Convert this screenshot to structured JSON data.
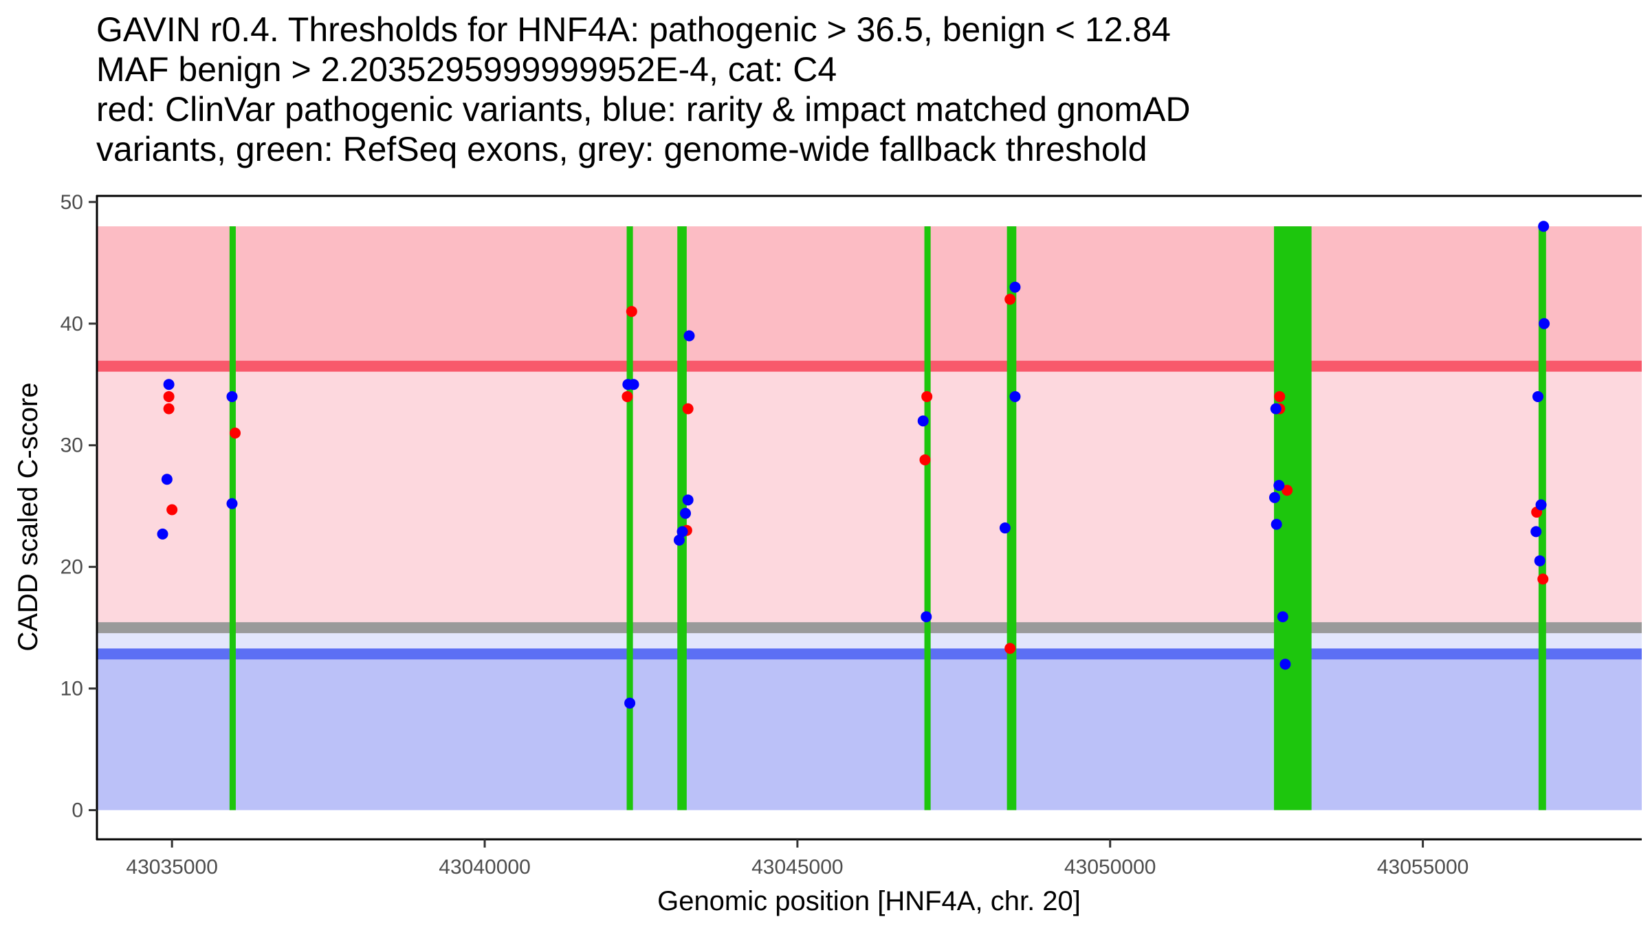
{
  "chart_data": {
    "type": "scatter",
    "title_lines": [
      "GAVIN r0.4. Thresholds for HNF4A: pathogenic > 36.5, benign < 12.84",
      "MAF benign > 2.2035295999999952E-4, cat: C4",
      "red: ClinVar pathogenic variants, blue: rarity & impact matched gnomAD",
      "variants, green: RefSeq exons, grey: genome-wide fallback threshold"
    ],
    "xlabel": "Genomic position [HNF4A, chr. 20]",
    "ylabel": "CADD scaled C-score",
    "xlim": [
      43033800,
      43058500
    ],
    "ylim": [
      -2.4,
      50.5
    ],
    "x_ticks": [
      43035000,
      43040000,
      43045000,
      43050000,
      43055000
    ],
    "x_tick_labels": [
      "43035000",
      "43040000",
      "43045000",
      "43050000",
      "43055000"
    ],
    "y_ticks": [
      0,
      10,
      20,
      30,
      40,
      50
    ],
    "y_tick_labels": [
      "0",
      "10",
      "20",
      "30",
      "40",
      "50"
    ],
    "colors": {
      "pathogenic_zone": "#fcbcc4",
      "middle_zone": "#fdd8de",
      "light_blue_zone": "#e3e6fc",
      "benign_zone": "#bbc1f8",
      "pathogenic_line": "#f8596b",
      "benign_line": "#5c6ff4",
      "fallback_line": "#9a9a9a",
      "exon": "#1dc60d",
      "clinvar": "#ff0000",
      "gnomad": "#0000ff"
    },
    "regions": {
      "x_start": 43033800,
      "x_end": 43058500,
      "y_top": 48,
      "pathogenic_threshold": 36.5,
      "fallback_threshold": 15.0,
      "benign_threshold": 12.84
    },
    "exons": [
      {
        "start": 43035920,
        "end": 43036020
      },
      {
        "start": 43042270,
        "end": 43042370
      },
      {
        "start": 43043080,
        "end": 43043230
      },
      {
        "start": 43047030,
        "end": 43047130
      },
      {
        "start": 43048350,
        "end": 43048500
      },
      {
        "start": 43052620,
        "end": 43053220
      },
      {
        "start": 43056850,
        "end": 43056970
      }
    ],
    "series": [
      {
        "name": "ClinVar pathogenic",
        "color": "#ff0000",
        "points": [
          {
            "x": 43034950,
            "y": 34.0
          },
          {
            "x": 43034950,
            "y": 33.0
          },
          {
            "x": 43035000,
            "y": 24.7
          },
          {
            "x": 43036010,
            "y": 31.0
          },
          {
            "x": 43042280,
            "y": 34.0
          },
          {
            "x": 43042350,
            "y": 41.0
          },
          {
            "x": 43043250,
            "y": 33.0
          },
          {
            "x": 43043230,
            "y": 23.0
          },
          {
            "x": 43047070,
            "y": 34.0
          },
          {
            "x": 43047040,
            "y": 28.8
          },
          {
            "x": 43048400,
            "y": 42.0
          },
          {
            "x": 43048400,
            "y": 13.3
          },
          {
            "x": 43052710,
            "y": 34.0
          },
          {
            "x": 43052710,
            "y": 33.0
          },
          {
            "x": 43052830,
            "y": 26.3
          },
          {
            "x": 43056820,
            "y": 24.5
          },
          {
            "x": 43056920,
            "y": 19.0
          }
        ]
      },
      {
        "name": "gnomAD matched",
        "color": "#0000ff",
        "points": [
          {
            "x": 43034950,
            "y": 35.0
          },
          {
            "x": 43034920,
            "y": 27.2
          },
          {
            "x": 43034850,
            "y": 22.7
          },
          {
            "x": 43035960,
            "y": 34.0
          },
          {
            "x": 43035960,
            "y": 25.2
          },
          {
            "x": 43042290,
            "y": 35.0
          },
          {
            "x": 43042380,
            "y": 35.0
          },
          {
            "x": 43042320,
            "y": 8.8
          },
          {
            "x": 43043270,
            "y": 39.0
          },
          {
            "x": 43043250,
            "y": 25.5
          },
          {
            "x": 43043210,
            "y": 24.4
          },
          {
            "x": 43043160,
            "y": 22.9
          },
          {
            "x": 43043110,
            "y": 22.2
          },
          {
            "x": 43047010,
            "y": 32.0
          },
          {
            "x": 43047060,
            "y": 15.9
          },
          {
            "x": 43048480,
            "y": 43.0
          },
          {
            "x": 43048480,
            "y": 34.0
          },
          {
            "x": 43048320,
            "y": 23.2
          },
          {
            "x": 43052650,
            "y": 33.0
          },
          {
            "x": 43052700,
            "y": 26.7
          },
          {
            "x": 43052630,
            "y": 25.7
          },
          {
            "x": 43052660,
            "y": 23.5
          },
          {
            "x": 43052760,
            "y": 15.9
          },
          {
            "x": 43052800,
            "y": 12.0
          },
          {
            "x": 43056930,
            "y": 48.0
          },
          {
            "x": 43056940,
            "y": 40.0
          },
          {
            "x": 43056840,
            "y": 34.0
          },
          {
            "x": 43056890,
            "y": 25.1
          },
          {
            "x": 43056810,
            "y": 22.9
          },
          {
            "x": 43056870,
            "y": 20.5
          }
        ]
      }
    ]
  }
}
